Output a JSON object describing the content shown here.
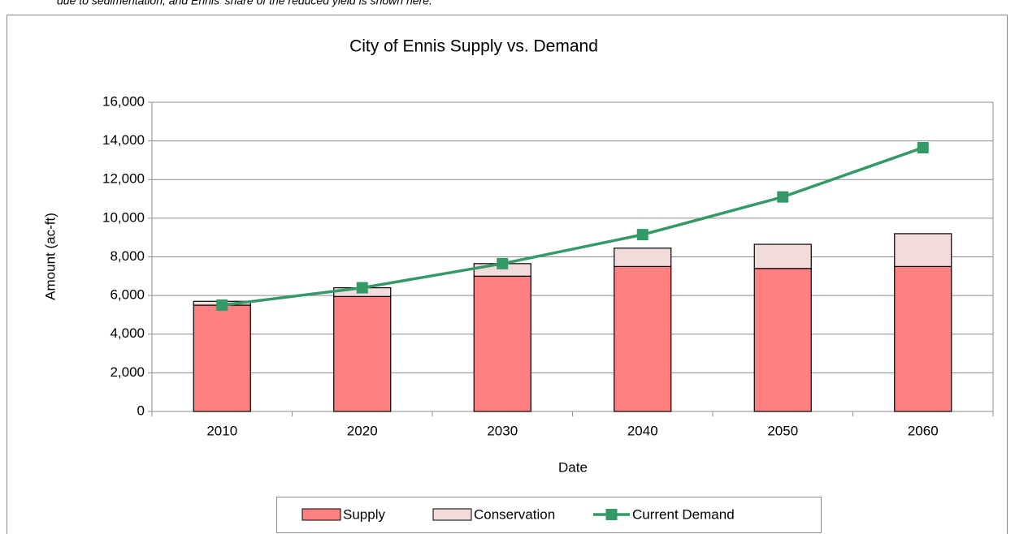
{
  "note": "due to sedimentation, and Ennis' share of the reduced yield is shown here.",
  "chart_data": {
    "type": "bar-line",
    "title": "City of Ennis Supply vs. Demand",
    "x_label": "Date",
    "y_label": "Amount (ac-ft)",
    "categories": [
      "2010",
      "2020",
      "2030",
      "2040",
      "2050",
      "2060"
    ],
    "series": [
      {
        "name": "Supply",
        "type": "bar",
        "color": "#ff8080",
        "values": [
          5500,
          5950,
          7000,
          7500,
          7400,
          7500
        ]
      },
      {
        "name": "Conservation",
        "type": "bar",
        "color": "#f2dcdb",
        "values": [
          200,
          450,
          650,
          950,
          1250,
          1700
        ]
      },
      {
        "name": "Current Demand",
        "type": "line",
        "color": "#339966",
        "values": [
          5500,
          6400,
          7650,
          9150,
          11100,
          13650
        ]
      }
    ],
    "ylim": [
      0,
      16000
    ],
    "yticks": [
      0,
      {
        "value": 2000,
        "label": "2,000"
      },
      {
        "value": 4000,
        "label": "4,000"
      },
      {
        "value": 6000,
        "label": "6,000"
      },
      {
        "value": 8000,
        "label": "8,000"
      },
      {
        "value": 10000,
        "label": "10,000"
      },
      {
        "value": 12000,
        "label": "12,000"
      },
      {
        "value": 14000,
        "label": "14,000"
      },
      {
        "value": 16000,
        "label": "16,000"
      }
    ],
    "grid": true,
    "legend": "bottom"
  }
}
